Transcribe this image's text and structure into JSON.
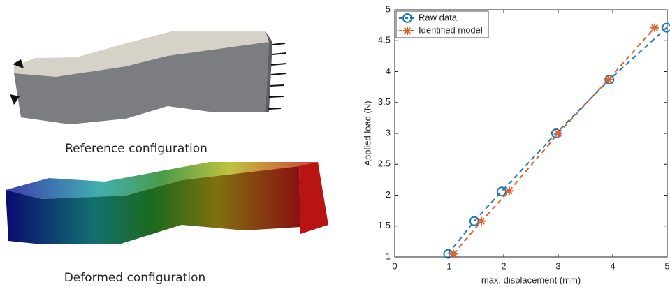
{
  "figure": {
    "captions": [
      "Reference configuration",
      "Deformed configuration"
    ]
  },
  "chart_data": {
    "type": "line",
    "xlabel": "max. displacement (mm)",
    "ylabel": "Applied load (N)",
    "xlim": [
      0,
      5
    ],
    "ylim": [
      1,
      5
    ],
    "xticks": [
      0,
      1,
      2,
      3,
      4,
      5
    ],
    "yticks": [
      1,
      1.5,
      2,
      2.5,
      3,
      3.5,
      4,
      4.5,
      5
    ],
    "legend": "upper left",
    "series": [
      {
        "name": "Raw data",
        "color": "#1f77b4",
        "marker": "circle",
        "x": [
          0.98,
          1.46,
          1.96,
          2.96,
          3.94,
          4.99
        ],
        "values": [
          1.05,
          1.58,
          2.06,
          3.0,
          3.87,
          4.71
        ]
      },
      {
        "name": "Identified model",
        "color": "#e0622a",
        "marker": "star",
        "x": [
          1.08,
          1.59,
          2.1,
          3.0,
          3.92,
          4.77
        ],
        "values": [
          1.05,
          1.58,
          2.07,
          3.0,
          3.87,
          4.71
        ]
      }
    ]
  }
}
